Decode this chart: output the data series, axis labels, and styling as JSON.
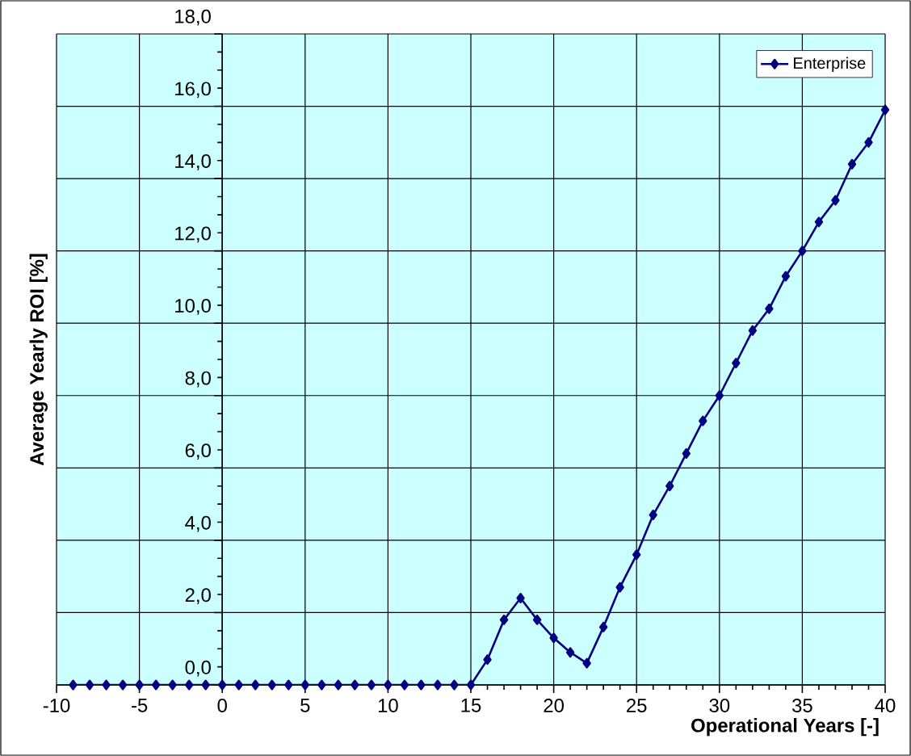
{
  "chart_data": {
    "type": "line",
    "xlabel": "Operational Years [-]",
    "ylabel": "Average Yearly ROI [%]",
    "x": [
      -9,
      -8,
      -7,
      -6,
      -5,
      -4,
      -3,
      -2,
      -1,
      0,
      1,
      2,
      3,
      4,
      5,
      6,
      7,
      8,
      9,
      10,
      11,
      12,
      13,
      14,
      15,
      16,
      17,
      18,
      19,
      20,
      21,
      22,
      23,
      24,
      25,
      26,
      27,
      28,
      29,
      30,
      31,
      32,
      33,
      34,
      35,
      36,
      37,
      38,
      39,
      40
    ],
    "series": [
      {
        "name": "Enterprise",
        "color": "#000080",
        "values": [
          0,
          0,
          0,
          0,
          0,
          0,
          0,
          0,
          0,
          0,
          0,
          0,
          0,
          0,
          0,
          0,
          0,
          0,
          0,
          0,
          0,
          0,
          0,
          0,
          0,
          0.7,
          1.8,
          2.4,
          1.8,
          1.3,
          0.9,
          0.6,
          1.6,
          2.7,
          3.6,
          4.7,
          5.5,
          6.4,
          7.3,
          8.0,
          8.9,
          9.8,
          10.4,
          11.3,
          12.0,
          12.8,
          13.4,
          14.4,
          15.0,
          15.9
        ]
      }
    ],
    "xlim": [
      -10,
      40
    ],
    "ylim": [
      0,
      18
    ],
    "xticks": [
      -10,
      -5,
      0,
      5,
      10,
      15,
      20,
      25,
      30,
      35,
      40
    ],
    "yticks": [
      {
        "value": 0,
        "label": "0,0"
      },
      {
        "value": 2,
        "label": "2,0"
      },
      {
        "value": 4,
        "label": "4,0"
      },
      {
        "value": 6,
        "label": "6,0"
      },
      {
        "value": 8,
        "label": "8,0"
      },
      {
        "value": 10,
        "label": "10,0"
      },
      {
        "value": 12,
        "label": "12,0"
      },
      {
        "value": 14,
        "label": "14,0"
      },
      {
        "value": 16,
        "label": "16,0"
      },
      {
        "value": 18,
        "label": "18,0"
      }
    ],
    "grid": true,
    "legend": "top right",
    "marker": "diamond",
    "line_style": "solid"
  }
}
